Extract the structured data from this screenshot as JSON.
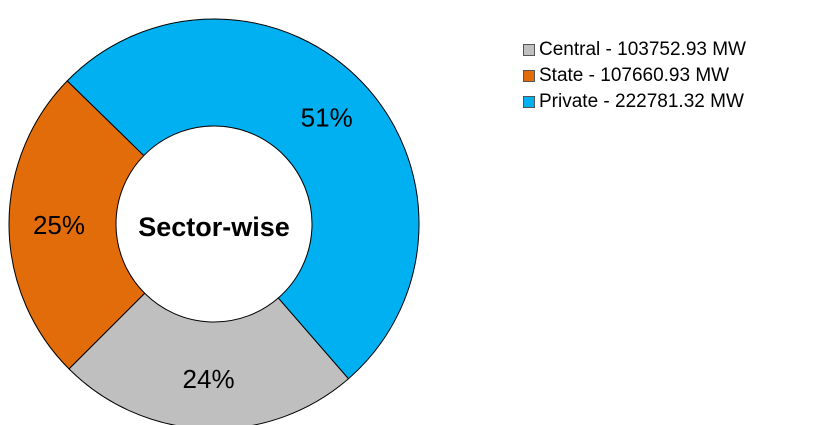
{
  "chart_data": {
    "type": "pie",
    "donut": true,
    "center_label": "Sector-wise",
    "slices": [
      {
        "label": "Central",
        "value": 103752.93,
        "unit": "MW",
        "percent_label": "24%",
        "color": "#bfbfbf",
        "legend": "Central - 103752.93 MW"
      },
      {
        "label": "State",
        "value": 107660.93,
        "unit": "MW",
        "percent_label": "25%",
        "color": "#e36c0a",
        "legend": "State - 107660.93 MW"
      },
      {
        "label": "Private",
        "value": 222781.32,
        "unit": "MW",
        "percent_label": "51%",
        "color": "#00b0f0",
        "legend": "Private - 222781.32 MW"
      }
    ],
    "legend_position": "top-right"
  }
}
